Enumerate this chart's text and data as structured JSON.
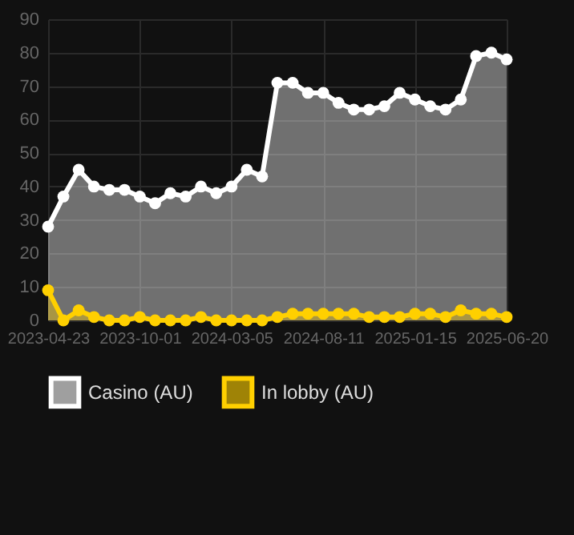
{
  "chart_data": {
    "type": "area",
    "categories": [
      "2023-04-23",
      null,
      null,
      null,
      null,
      null,
      "2023-10-01",
      null,
      null,
      null,
      null,
      null,
      "2024-03-05",
      null,
      null,
      null,
      null,
      null,
      "2024-08-11",
      null,
      null,
      null,
      null,
      null,
      "2025-01-15",
      null,
      null,
      null,
      null,
      null,
      "2025-06-20"
    ],
    "series": [
      {
        "name": "Casino (AU)",
        "color": "#ffffff",
        "values": [
          28,
          37,
          45,
          40,
          39,
          39,
          37,
          35,
          38,
          37,
          40,
          38,
          40,
          45,
          43,
          71,
          71,
          68,
          68,
          65,
          63,
          63,
          64,
          68,
          66,
          64,
          63,
          66,
          79,
          80,
          78
        ]
      },
      {
        "name": "In lobby (AU)",
        "color": "#ffd000",
        "values": [
          9,
          0,
          3,
          1,
          0,
          0,
          1,
          0,
          0,
          0,
          1,
          0,
          0,
          0,
          0,
          1,
          2,
          2,
          2,
          2,
          2,
          1,
          1,
          1,
          2,
          2,
          1,
          3,
          2,
          2,
          1
        ]
      }
    ],
    "ylim": [
      0,
      90
    ],
    "yticks": [
      0,
      10,
      20,
      30,
      40,
      50,
      60,
      70,
      80,
      90
    ],
    "grid": true,
    "legend": "bottom",
    "marker": "circle",
    "line_style": "solid"
  }
}
